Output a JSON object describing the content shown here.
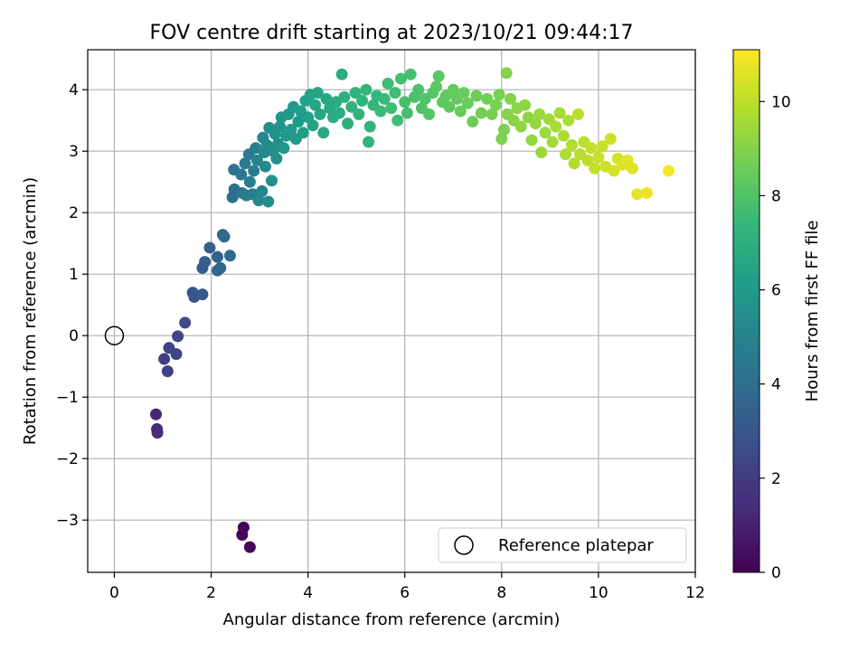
{
  "chart_data": {
    "type": "scatter",
    "title": "FOV centre drift starting at 2023/10/21 09:44:17",
    "xlabel": "Angular distance from reference (arcmin)",
    "ylabel": "Rotation from reference (arcmin)",
    "xlim": [
      -0.55,
      12.0
    ],
    "ylim": [
      -3.85,
      4.65
    ],
    "xticks": [
      "0",
      "2",
      "4",
      "6",
      "8",
      "10",
      "12"
    ],
    "yticks": [
      "−3",
      "−2",
      "−1",
      "0",
      "1",
      "2",
      "3",
      "4"
    ],
    "grid": true,
    "legend": {
      "placement": "lower-right",
      "label": "Reference platepar"
    },
    "reference_point": {
      "x": 0,
      "y": 0
    },
    "colorbar": {
      "label": "Hours from first FF file",
      "range": [
        0,
        11.1
      ],
      "ticks": [
        "0",
        "2",
        "4",
        "6",
        "8",
        "10"
      ],
      "colormap": "viridis"
    },
    "colors": {
      "viridis": [
        "#440154",
        "#482878",
        "#3e4989",
        "#31688e",
        "#26828e",
        "#1f9e89",
        "#35b779",
        "#6ece58",
        "#b5de2b",
        "#fde725"
      ]
    },
    "series": [
      {
        "points": [
          [
            2.67,
            -3.12,
            0.1
          ],
          [
            2.64,
            -3.24,
            0.15
          ],
          [
            2.8,
            -3.44,
            0.2
          ],
          [
            0.86,
            -1.28,
            1.2
          ],
          [
            0.88,
            -1.52,
            1.3
          ],
          [
            0.89,
            -1.58,
            1.4
          ],
          [
            1.03,
            -0.38,
            2.0
          ],
          [
            1.1,
            -0.58,
            2.1
          ],
          [
            1.13,
            -0.2,
            2.2
          ],
          [
            1.28,
            -0.3,
            2.3
          ],
          [
            1.31,
            -0.01,
            2.4
          ],
          [
            1.46,
            0.21,
            2.5
          ],
          [
            1.62,
            0.7,
            2.9
          ],
          [
            1.65,
            0.63,
            3.0
          ],
          [
            1.82,
            0.67,
            3.1
          ],
          [
            1.82,
            1.1,
            3.2
          ],
          [
            1.87,
            1.2,
            3.3
          ],
          [
            1.97,
            1.43,
            3.4
          ],
          [
            2.13,
            1.28,
            3.5
          ],
          [
            2.13,
            1.06,
            3.6
          ],
          [
            2.19,
            1.1,
            3.6
          ],
          [
            2.24,
            1.64,
            3.7
          ],
          [
            2.27,
            1.61,
            3.8
          ],
          [
            2.39,
            1.3,
            3.9
          ],
          [
            2.44,
            2.25,
            4.0
          ],
          [
            2.48,
            2.38,
            4.1
          ],
          [
            2.47,
            2.7,
            4.2
          ],
          [
            2.62,
            2.62,
            4.3
          ],
          [
            2.64,
            2.32,
            4.4
          ],
          [
            2.7,
            2.8,
            4.5
          ],
          [
            2.73,
            2.28,
            4.5
          ],
          [
            2.78,
            2.95,
            4.6
          ],
          [
            2.8,
            2.5,
            4.7
          ],
          [
            2.86,
            2.3,
            4.8
          ],
          [
            2.88,
            2.68,
            4.8
          ],
          [
            2.92,
            3.05,
            4.9
          ],
          [
            2.95,
            2.85,
            5.0
          ],
          [
            2.98,
            2.2,
            5.1
          ],
          [
            3.05,
            2.35,
            5.1
          ],
          [
            3.07,
            3.22,
            5.2
          ],
          [
            3.1,
            2.98,
            5.2
          ],
          [
            3.12,
            2.75,
            5.3
          ],
          [
            3.15,
            3.1,
            5.3
          ],
          [
            3.18,
            2.18,
            5.4
          ],
          [
            3.2,
            3.38,
            5.4
          ],
          [
            3.25,
            2.52,
            5.5
          ],
          [
            3.28,
            3.0,
            5.5
          ],
          [
            3.32,
            3.28,
            5.6
          ],
          [
            3.35,
            2.88,
            5.6
          ],
          [
            3.38,
            3.12,
            5.7
          ],
          [
            3.42,
            3.4,
            5.7
          ],
          [
            3.45,
            3.55,
            5.8
          ],
          [
            3.5,
            3.05,
            5.8
          ],
          [
            3.55,
            3.25,
            5.9
          ],
          [
            3.6,
            3.6,
            5.9
          ],
          [
            3.65,
            3.35,
            6.0
          ],
          [
            3.7,
            3.72,
            6.0
          ],
          [
            3.75,
            3.2,
            6.1
          ],
          [
            3.8,
            3.48,
            6.1
          ],
          [
            3.85,
            3.65,
            6.2
          ],
          [
            3.9,
            3.3,
            6.2
          ],
          [
            3.95,
            3.82,
            6.3
          ],
          [
            4.0,
            3.55,
            6.3
          ],
          [
            4.05,
            3.92,
            6.4
          ],
          [
            4.1,
            3.42,
            6.4
          ],
          [
            4.15,
            3.75,
            6.5
          ],
          [
            4.2,
            3.95,
            6.5
          ],
          [
            4.25,
            3.6,
            6.6
          ],
          [
            4.32,
            3.3,
            6.6
          ],
          [
            4.38,
            3.85,
            6.7
          ],
          [
            4.45,
            3.7,
            6.7
          ],
          [
            4.52,
            3.55,
            6.8
          ],
          [
            4.58,
            3.8,
            6.8
          ],
          [
            4.65,
            3.62,
            6.9
          ],
          [
            4.7,
            4.25,
            6.9
          ],
          [
            4.75,
            3.88,
            7.0
          ],
          [
            4.82,
            3.45,
            7.0
          ],
          [
            4.9,
            3.72,
            7.1
          ],
          [
            4.98,
            3.95,
            7.1
          ],
          [
            5.05,
            3.6,
            7.2
          ],
          [
            5.12,
            3.82,
            7.2
          ],
          [
            5.2,
            4.0,
            7.3
          ],
          [
            5.25,
            3.15,
            7.3
          ],
          [
            5.28,
            3.4,
            7.3
          ],
          [
            5.35,
            3.75,
            7.4
          ],
          [
            5.42,
            3.9,
            7.4
          ],
          [
            5.5,
            3.65,
            7.5
          ],
          [
            5.58,
            3.85,
            7.5
          ],
          [
            5.65,
            4.1,
            7.6
          ],
          [
            5.72,
            3.7,
            7.6
          ],
          [
            5.8,
            3.95,
            7.6
          ],
          [
            5.85,
            3.5,
            7.7
          ],
          [
            5.92,
            4.18,
            7.7
          ],
          [
            6.0,
            3.8,
            7.8
          ],
          [
            6.05,
            3.62,
            7.8
          ],
          [
            6.12,
            4.25,
            7.8
          ],
          [
            6.2,
            3.88,
            7.9
          ],
          [
            6.28,
            4.0,
            7.9
          ],
          [
            6.35,
            3.7,
            8.0
          ],
          [
            6.42,
            3.85,
            8.0
          ],
          [
            6.5,
            3.6,
            8.1
          ],
          [
            6.58,
            3.95,
            8.1
          ],
          [
            6.65,
            4.05,
            8.2
          ],
          [
            6.7,
            4.22,
            8.2
          ],
          [
            6.78,
            3.8,
            8.2
          ],
          [
            6.85,
            3.9,
            8.3
          ],
          [
            6.92,
            3.72,
            8.3
          ],
          [
            7.0,
            4.0,
            8.4
          ],
          [
            7.08,
            3.85,
            8.4
          ],
          [
            7.15,
            3.65,
            8.5
          ],
          [
            7.22,
            3.95,
            8.5
          ],
          [
            7.3,
            3.78,
            8.5
          ],
          [
            7.4,
            3.48,
            8.6
          ],
          [
            7.48,
            3.9,
            8.6
          ],
          [
            7.58,
            3.62,
            8.7
          ],
          [
            7.7,
            3.85,
            8.7
          ],
          [
            7.8,
            3.6,
            8.8
          ],
          [
            7.88,
            3.75,
            8.8
          ],
          [
            7.95,
            3.92,
            8.8
          ],
          [
            8.0,
            3.2,
            8.9
          ],
          [
            8.05,
            3.35,
            8.9
          ],
          [
            8.1,
            4.27,
            9.0
          ],
          [
            8.12,
            3.6,
            9.0
          ],
          [
            8.18,
            3.85,
            9.0
          ],
          [
            8.25,
            3.5,
            9.1
          ],
          [
            8.32,
            3.7,
            9.1
          ],
          [
            8.4,
            3.4,
            9.2
          ],
          [
            8.48,
            3.75,
            9.2
          ],
          [
            8.55,
            3.55,
            9.2
          ],
          [
            8.62,
            3.18,
            9.3
          ],
          [
            8.7,
            3.45,
            9.3
          ],
          [
            8.78,
            3.6,
            9.4
          ],
          [
            8.82,
            2.98,
            9.4
          ],
          [
            8.9,
            3.3,
            9.4
          ],
          [
            8.98,
            3.52,
            9.5
          ],
          [
            9.05,
            3.15,
            9.5
          ],
          [
            9.12,
            3.4,
            9.6
          ],
          [
            9.2,
            3.62,
            9.6
          ],
          [
            9.28,
            3.25,
            9.7
          ],
          [
            9.32,
            2.95,
            9.7
          ],
          [
            9.38,
            3.5,
            9.7
          ],
          [
            9.45,
            3.1,
            9.8
          ],
          [
            9.5,
            2.8,
            9.8
          ],
          [
            9.58,
            3.6,
            9.9
          ],
          [
            9.62,
            2.95,
            9.9
          ],
          [
            9.7,
            3.15,
            10.0
          ],
          [
            9.78,
            2.85,
            10.0
          ],
          [
            9.85,
            3.05,
            10.1
          ],
          [
            9.92,
            2.72,
            10.1
          ],
          [
            10.0,
            2.9,
            10.2
          ],
          [
            10.08,
            3.08,
            10.2
          ],
          [
            10.15,
            2.75,
            10.3
          ],
          [
            10.25,
            3.2,
            10.3
          ],
          [
            10.32,
            2.68,
            10.4
          ],
          [
            10.4,
            2.88,
            10.4
          ],
          [
            10.5,
            2.78,
            10.5
          ],
          [
            10.6,
            2.85,
            10.6
          ],
          [
            10.7,
            2.72,
            10.6
          ],
          [
            10.8,
            2.3,
            10.7
          ],
          [
            11.0,
            2.32,
            10.8
          ],
          [
            11.45,
            2.68,
            11.0
          ]
        ]
      }
    ]
  }
}
